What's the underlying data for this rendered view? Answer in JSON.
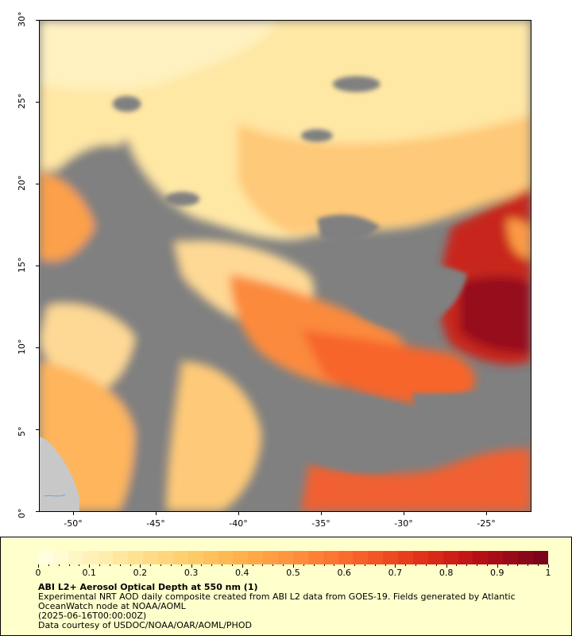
{
  "map": {
    "y_axis_labels": [
      "30°",
      "25°",
      "20°",
      "15°",
      "10°",
      "5°",
      "0°"
    ],
    "x_axis_labels": [
      "-50°",
      "-45°",
      "-40°",
      "-35°",
      "-30°",
      "-25°"
    ],
    "lat_range": [
      0,
      30
    ],
    "lon_range": [
      -52.2,
      -22.2
    ],
    "no_data_color": "#808080",
    "land_color": "#c8c8c8"
  },
  "legend": {
    "colorbar_labels": [
      "0",
      "0.1",
      "0.2",
      "0.3",
      "0.4",
      "0.5",
      "0.6",
      "0.7",
      "0.8",
      "0.9",
      "1"
    ],
    "colorbar_colors": [
      "#ffffe0",
      "#fff6c4",
      "#ffecaa",
      "#ffe090",
      "#ffd47a",
      "#fec764",
      "#feb650",
      "#fea446",
      "#fd913e",
      "#fc7b34",
      "#f9652a",
      "#f04e22",
      "#e3351c",
      "#d11f18",
      "#b81016",
      "#9a0a18",
      "#7a0419"
    ],
    "title": "ABI L2+ Aerosol Optical Depth at 550 nm (1)",
    "line1": "Experimental NRT AOD daily composite created from ABI L2 data from GOES-19. Fields generated by Atlantic",
    "line2": "OceanWatch node at NOAA/AOML",
    "line3": "(2025-06-16T00:00:00Z)",
    "line4": "Data courtesy of USDOC/NOAA/OAR/AOML/PHOD"
  }
}
